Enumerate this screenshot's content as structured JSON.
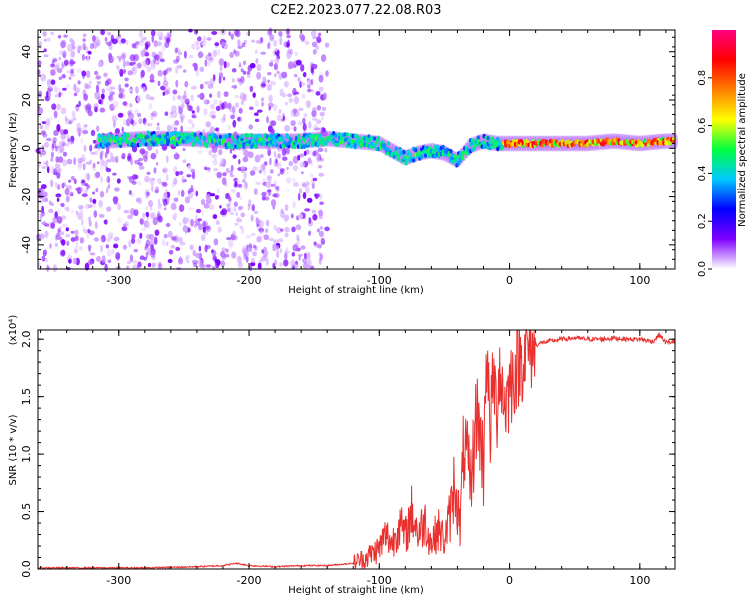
{
  "title": "C2E2.2023.077.22.08.R03",
  "chart_data": [
    {
      "type": "heatmap",
      "title": "C2E2.2023.077.22.08.R03",
      "xlabel": "Height of straight line (km)",
      "ylabel": "Frequency (Hz)",
      "xlim": [
        -362,
        127
      ],
      "ylim": [
        -50,
        49
      ],
      "xticks": [
        -300,
        -200,
        -100,
        0,
        100
      ],
      "yticks": [
        -40,
        -20,
        0,
        20,
        40
      ],
      "xtick_labels": [
        "-300",
        "-200",
        "-100",
        "0",
        "100"
      ],
      "ytick_labels": [
        "-40",
        "-20",
        "0",
        "20",
        "40"
      ],
      "colorbar": {
        "label": "Normalized spectral amplitude",
        "range": [
          0,
          1
        ],
        "ticks": [
          0.0,
          0.2,
          0.4,
          0.6,
          0.8
        ],
        "tick_labels": [
          "0.0",
          "0.2",
          "0.4",
          "0.6",
          "0.8"
        ],
        "colors": [
          "#ffffff",
          "#7f00ff",
          "#0000ff",
          "#00c8ff",
          "#00ff40",
          "#ffff00",
          "#ff7f00",
          "#ff0000",
          "#ff0080"
        ]
      },
      "ridge_center_hz": [
        [
          -310,
          3
        ],
        [
          -280,
          4
        ],
        [
          -250,
          4
        ],
        [
          -220,
          3
        ],
        [
          -190,
          3
        ],
        [
          -160,
          3
        ],
        [
          -140,
          4
        ],
        [
          -120,
          3
        ],
        [
          -100,
          2
        ],
        [
          -90,
          -1
        ],
        [
          -80,
          -4
        ],
        [
          -70,
          -2
        ],
        [
          -60,
          -1
        ],
        [
          -50,
          -2
        ],
        [
          -40,
          -5
        ],
        [
          -30,
          1
        ],
        [
          -20,
          3
        ],
        [
          -10,
          2
        ],
        [
          0,
          2
        ],
        [
          20,
          2
        ],
        [
          40,
          2
        ],
        [
          60,
          2
        ],
        [
          80,
          3
        ],
        [
          100,
          2
        ],
        [
          120,
          3
        ]
      ],
      "noise_region_km": [
        -362,
        -140
      ]
    },
    {
      "type": "line",
      "xlabel": "Height of straight line (km)",
      "ylabel": "SNR (10 * v/v)",
      "y_scale_label": "(x10⁴)",
      "xlim": [
        -362,
        127
      ],
      "ylim": [
        0,
        2.08
      ],
      "xticks": [
        -300,
        -200,
        -100,
        0,
        100
      ],
      "yticks": [
        0.0,
        0.5,
        1.0,
        1.5,
        2.0
      ],
      "xtick_labels": [
        "-300",
        "-200",
        "-100",
        "0",
        "100"
      ],
      "ytick_labels": [
        "0.0",
        "0.5",
        "1.0",
        "1.5",
        "2.0"
      ],
      "color": "#e8302e",
      "series": [
        {
          "name": "SNR",
          "x": [
            -362,
            -340,
            -320,
            -300,
            -280,
            -260,
            -240,
            -220,
            -210,
            -200,
            -180,
            -160,
            -140,
            -130,
            -120,
            -110,
            -100,
            -95,
            -90,
            -85,
            -80,
            -75,
            -70,
            -65,
            -60,
            -55,
            -50,
            -45,
            -42,
            -38,
            -35,
            -30,
            -25,
            -20,
            -18,
            -15,
            -12,
            -10,
            -8,
            -5,
            -2,
            0,
            5,
            10,
            15,
            20,
            25,
            30,
            40,
            50,
            60,
            70,
            80,
            90,
            100,
            110,
            115,
            120,
            127
          ],
          "values": [
            0.01,
            0.01,
            0.01,
            0.01,
            0.01,
            0.015,
            0.02,
            0.03,
            0.05,
            0.03,
            0.02,
            0.03,
            0.03,
            0.04,
            0.05,
            0.1,
            0.18,
            0.3,
            0.22,
            0.4,
            0.28,
            0.5,
            0.3,
            0.42,
            0.22,
            0.35,
            0.25,
            0.5,
            0.8,
            0.35,
            1.1,
            0.7,
            1.4,
            0.9,
            1.95,
            1.2,
            1.7,
            1.3,
            1.8,
            1.5,
            1.45,
            1.6,
            1.75,
            1.85,
            1.92,
            1.95,
            1.97,
            1.98,
            2.0,
            2.01,
            2.0,
            2.0,
            2.01,
            2.0,
            2.0,
            1.98,
            2.04,
            1.97,
            1.98
          ]
        }
      ]
    }
  ]
}
